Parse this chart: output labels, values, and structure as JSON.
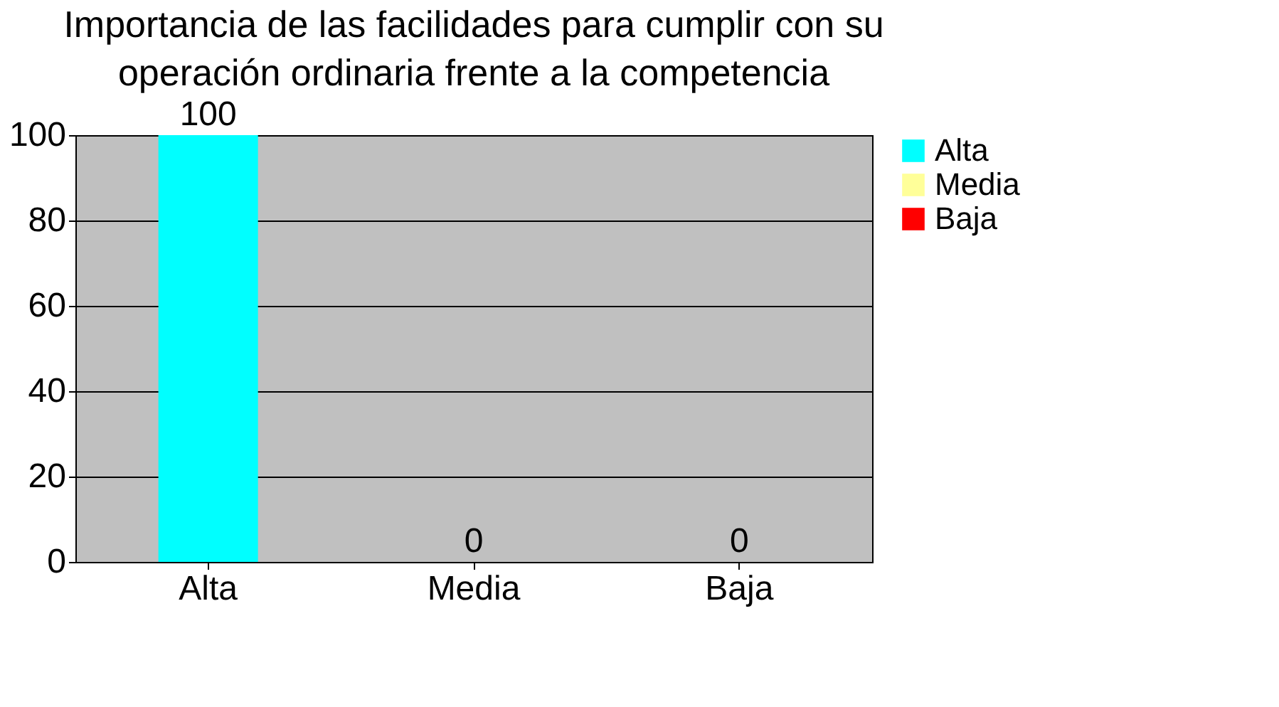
{
  "chart_data": {
    "type": "bar",
    "title": "Importancia de las facilidades para cumplir con su operación ordinaria frente a la competencia",
    "categories": [
      "Alta",
      "Media",
      "Baja"
    ],
    "series": [
      {
        "name": "Alta",
        "color": "#00ffff",
        "values": [
          100,
          null,
          null
        ]
      },
      {
        "name": "Media",
        "color": "#ffff99",
        "values": [
          null,
          0,
          null
        ]
      },
      {
        "name": "Baja",
        "color": "#ff0000",
        "values": [
          null,
          null,
          0
        ]
      }
    ],
    "ylim": [
      0,
      100
    ],
    "yticks": [
      0,
      20,
      40,
      60,
      80,
      100
    ],
    "grid": "y",
    "legend": "right",
    "data_labels": true
  }
}
